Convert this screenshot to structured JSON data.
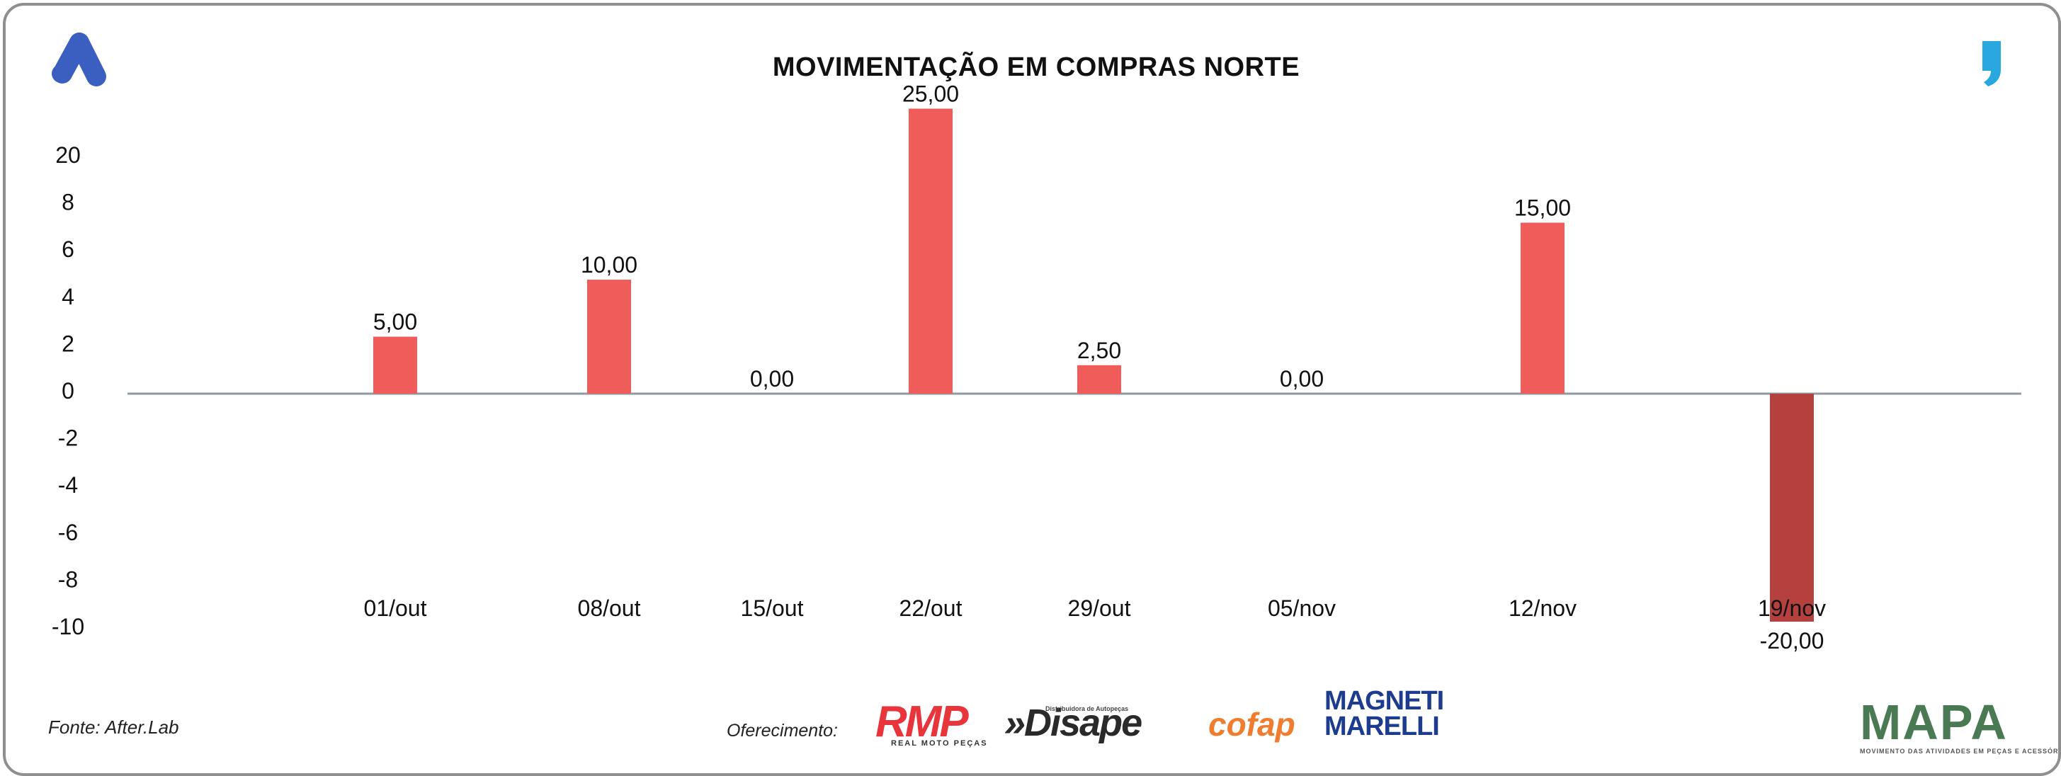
{
  "title": "MOVIMENTAÇÃO EM COMPRAS NORTE",
  "source_note": "Fonte: After.Lab",
  "sponsor_label": "Oferecimento:",
  "logos": {
    "rmp": "RMP",
    "rmp_sub": "REAL MOTO PEÇAS",
    "disape": "»Disape",
    "disape_sub": "Distribuidora de Autopeças",
    "cofap": "cofap",
    "magneti": "MAGNETI",
    "marelli": "MARELLI",
    "mapa": "MAPA",
    "mapa_sub": "MOVIMENTO DAS ATIVIDADES EM PEÇAS E ACESSÓRIOS"
  },
  "colors": {
    "positive_bar": "#f05c59",
    "negative_bar": "#b5413f",
    "axis_line": "#8f99a6",
    "brand_blue": "#3b5fc0",
    "brand_cyan": "#29a8e0"
  },
  "chart_data": {
    "type": "bar",
    "title": "MOVIMENTAÇÃO EM COMPRAS NORTE",
    "categories": [
      "01/out",
      "08/out",
      "15/out",
      "22/out",
      "29/out",
      "05/nov",
      "12/nov",
      "19/nov"
    ],
    "values": [
      5.0,
      10.0,
      0.0,
      25.0,
      2.5,
      0.0,
      15.0,
      -20.0
    ],
    "data_labels": [
      "5,00",
      "10,00",
      "0,00",
      "25,00",
      "2,50",
      "0,00",
      "15,00",
      "-20,00"
    ],
    "y_tick_labels": [
      "20",
      "8",
      "6",
      "4",
      "2",
      "0",
      "-2",
      "-4",
      "-6",
      "-8",
      "-10"
    ],
    "xlabel": "",
    "ylabel": "",
    "grid": false,
    "legend": "none"
  }
}
